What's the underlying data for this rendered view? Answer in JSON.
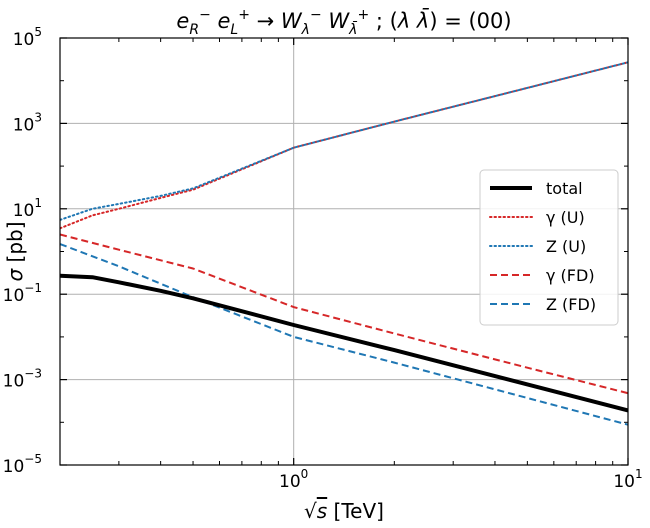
{
  "chart_data": {
    "type": "line",
    "title": {
      "parts": [
        {
          "t": "e",
          "style": "italic"
        },
        {
          "t": "R",
          "style": "italic",
          "shift": "sub"
        },
        {
          "t": "−",
          "shift": "sup"
        },
        {
          "t": " "
        },
        {
          "t": "e",
          "style": "italic"
        },
        {
          "t": "L",
          "style": "italic",
          "shift": "sub"
        },
        {
          "t": "+",
          "shift": "sup"
        },
        {
          "t": " → "
        },
        {
          "t": "W",
          "style": "italic"
        },
        {
          "t": "λ",
          "style": "italic",
          "shift": "sub"
        },
        {
          "t": "−",
          "shift": "sup"
        },
        {
          "t": " "
        },
        {
          "t": "W",
          "style": "italic"
        },
        {
          "t": "λ̄",
          "style": "italic",
          "shift": "sub"
        },
        {
          "t": "+",
          "shift": "sup"
        },
        {
          "t": " ; ("
        },
        {
          "t": "λ λ̄",
          "style": "italic"
        },
        {
          "t": ") = (00)"
        }
      ]
    },
    "xlabel": {
      "root": "√",
      "var": "s",
      "unit": " [TeV]"
    },
    "ylabel": {
      "var": "σ",
      "unit": " [pb]"
    },
    "xscale": "log",
    "yscale": "log",
    "xlim": [
      0.2,
      10
    ],
    "ylim": [
      1e-05,
      100000.0
    ],
    "grid": true,
    "legend_position": "right",
    "x_ticks": [
      {
        "value": 1,
        "base": "10",
        "exp": "0"
      },
      {
        "value": 10,
        "base": "10",
        "exp": "1"
      }
    ],
    "y_ticks": [
      {
        "value": 1e-05,
        "base": "10",
        "exp": "−5"
      },
      {
        "value": 0.001,
        "base": "10",
        "exp": "−3"
      },
      {
        "value": 0.1,
        "base": "10",
        "exp": "−1"
      },
      {
        "value": 10,
        "base": "10",
        "exp": "1"
      },
      {
        "value": 1000.0,
        "base": "10",
        "exp": "3"
      },
      {
        "value": 100000.0,
        "base": "10",
        "exp": "5"
      }
    ],
    "series": [
      {
        "name": "total",
        "color": "#000000",
        "style": "solid",
        "points": [
          [
            0.2,
            0.27
          ],
          [
            0.25,
            0.25
          ],
          [
            0.3,
            0.19
          ],
          [
            0.4,
            0.12
          ],
          [
            0.5,
            0.08
          ],
          [
            1,
            0.019
          ],
          [
            2,
            0.0049
          ],
          [
            5,
            0.00077
          ],
          [
            10,
            0.00019
          ]
        ]
      },
      {
        "name": "γ (U)",
        "color": "#d62728",
        "style": "dotted",
        "points": [
          [
            0.2,
            3.5
          ],
          [
            0.25,
            7
          ],
          [
            0.3,
            10
          ],
          [
            0.4,
            18
          ],
          [
            0.5,
            28
          ],
          [
            1,
            270
          ],
          [
            2,
            1100
          ],
          [
            5,
            6800
          ],
          [
            10,
            27000
          ]
        ]
      },
      {
        "name": "Z (U)",
        "color": "#1f77b4",
        "style": "dotted",
        "points": [
          [
            0.2,
            5.5
          ],
          [
            0.25,
            10
          ],
          [
            0.3,
            13
          ],
          [
            0.4,
            20
          ],
          [
            0.5,
            30
          ],
          [
            1,
            270
          ],
          [
            2,
            1100
          ],
          [
            5,
            6800
          ],
          [
            10,
            27000
          ]
        ]
      },
      {
        "name": "γ (FD)",
        "color": "#d62728",
        "style": "dashed",
        "points": [
          [
            0.2,
            2.5
          ],
          [
            0.3,
            1.1
          ],
          [
            0.5,
            0.4
          ],
          [
            1,
            0.05
          ],
          [
            2,
            0.012
          ],
          [
            5,
            0.0019
          ],
          [
            10,
            0.00048
          ]
        ]
      },
      {
        "name": "Z (FD)",
        "color": "#1f77b4",
        "style": "dashed",
        "points": [
          [
            0.2,
            1.5
          ],
          [
            0.3,
            0.45
          ],
          [
            0.5,
            0.085
          ],
          [
            1,
            0.01
          ],
          [
            2,
            0.0025
          ],
          [
            5,
            0.00037
          ],
          [
            10,
            8.8e-05
          ]
        ]
      }
    ]
  }
}
